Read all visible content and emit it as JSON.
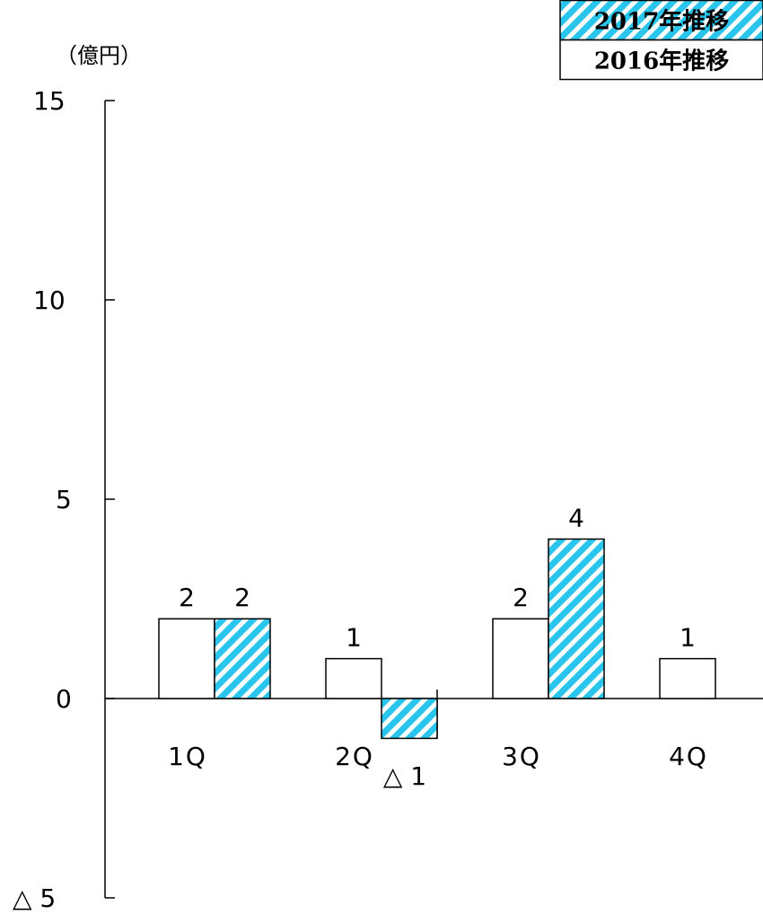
{
  "chart_data": {
    "type": "bar",
    "unit_label": "（億円）",
    "categories": [
      "1Q",
      "2Q",
      "3Q",
      "4Q"
    ],
    "ylim": [
      -5,
      15
    ],
    "yticks": [
      {
        "value": 15,
        "label": "15"
      },
      {
        "value": 10,
        "label": "10"
      },
      {
        "value": 5,
        "label": "5"
      },
      {
        "value": 0,
        "label": "0"
      },
      {
        "value": -5,
        "label": "△ 5"
      }
    ],
    "series": [
      {
        "name": "2016年推移",
        "style": "plain",
        "fill": "#ffffff",
        "values": [
          2,
          1,
          2,
          1
        ],
        "labels": [
          "2",
          "1",
          "2",
          "1"
        ]
      },
      {
        "name": "2017年推移",
        "style": "hatched",
        "fill": "#29c5ec",
        "values": [
          2,
          -1,
          4,
          null
        ],
        "labels": [
          "2",
          "△ 1",
          "4",
          ""
        ]
      }
    ],
    "legend": "top-right",
    "grid": false
  }
}
